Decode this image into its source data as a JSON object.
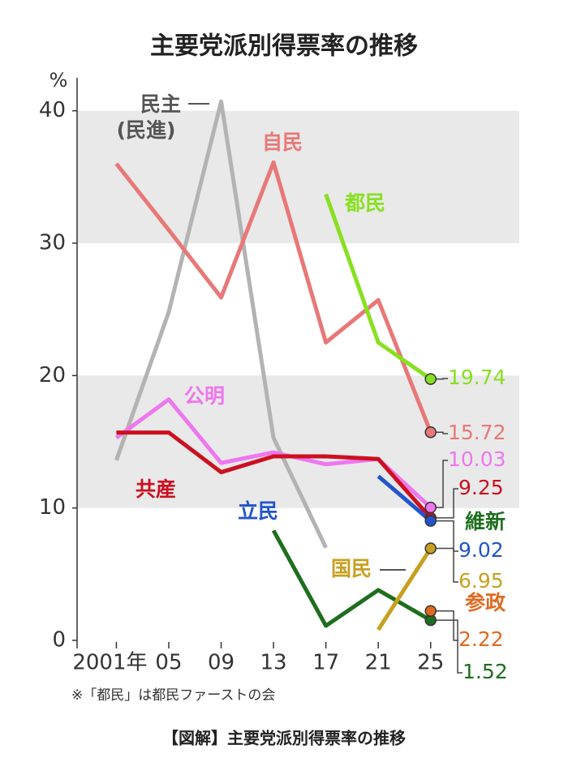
{
  "chart_data": {
    "type": "line",
    "title": "主要党派別得票率の推移",
    "y_unit": "%",
    "note": "※「都民」は都民ファーストの会",
    "caption": "【図解】主要党派別得票率の推移",
    "x": [
      2001,
      2005,
      2009,
      2013,
      2017,
      2021,
      2025
    ],
    "xlim": [
      1998,
      2027
    ],
    "xticks": [
      {
        "value": 2001,
        "label": "2001年"
      },
      {
        "value": 2005,
        "label": "05"
      },
      {
        "value": 2009,
        "label": "09"
      },
      {
        "value": 2013,
        "label": "13"
      },
      {
        "value": 2017,
        "label": "17"
      },
      {
        "value": 2021,
        "label": "21"
      },
      {
        "value": 2025,
        "label": "25"
      }
    ],
    "ylim": [
      0,
      42
    ],
    "yticks": [
      0,
      10,
      20,
      30,
      40
    ],
    "shaded_bands": true,
    "series": [
      {
        "name": "民主",
        "name_sub": "(民進)",
        "color": "#b3b3b3",
        "values": [
          13.6,
          24.8,
          40.7,
          15.3,
          7.0,
          null,
          null
        ]
      },
      {
        "name": "自民",
        "color": "#e87878",
        "values": [
          36.0,
          31.0,
          25.9,
          36.1,
          22.5,
          25.7,
          15.72
        ]
      },
      {
        "name": "都民",
        "color": "#88e020",
        "values": [
          null,
          null,
          null,
          null,
          33.7,
          22.5,
          19.74
        ]
      },
      {
        "name": "公明",
        "color": "#ee77ee",
        "values": [
          15.3,
          18.2,
          13.4,
          14.2,
          13.3,
          13.7,
          10.03
        ]
      },
      {
        "name": "共産",
        "color": "#cc1020",
        "values": [
          15.7,
          15.7,
          12.7,
          13.9,
          13.9,
          13.7,
          9.25
        ]
      },
      {
        "name": "立民",
        "color": "#2255cc",
        "values": [
          null,
          null,
          null,
          null,
          null,
          12.4,
          9.02
        ]
      },
      {
        "name": "維新",
        "color": "#1e6e1e",
        "values": [
          null,
          null,
          null,
          8.3,
          1.1,
          3.8,
          1.52
        ]
      },
      {
        "name": "国民",
        "color": "#c8a020",
        "values": [
          null,
          null,
          null,
          null,
          null,
          0.8,
          6.95
        ]
      },
      {
        "name": "参政",
        "color": "#e06a20",
        "values": [
          null,
          null,
          null,
          null,
          null,
          null,
          2.22
        ]
      }
    ]
  }
}
